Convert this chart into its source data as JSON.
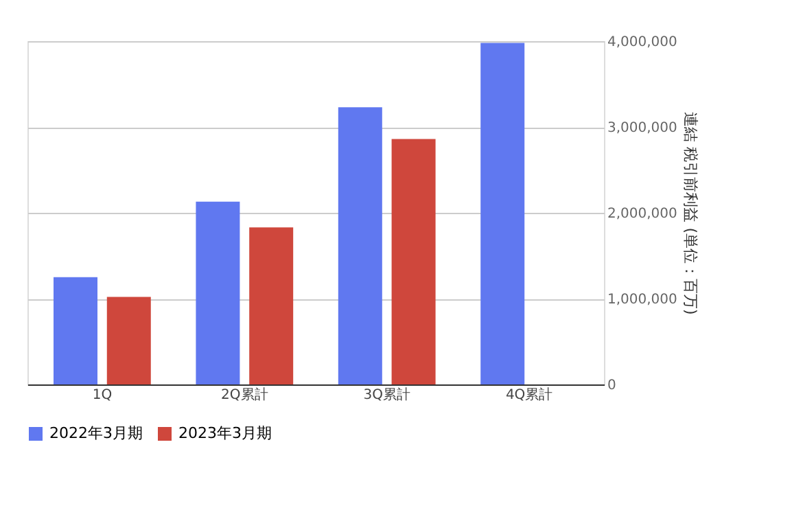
{
  "chart_data": {
    "type": "bar",
    "ylabel": "連結 税引前利益 (単位：百万)",
    "categories": [
      "1Q",
      "2Q累計",
      "3Q累計",
      "4Q累計"
    ],
    "series": [
      {
        "name": "2022年3月期",
        "color": "#6078f0",
        "values": [
          1250000,
          2130000,
          3230000,
          3980000
        ]
      },
      {
        "name": "2023年3月期",
        "color": "#cf473c",
        "values": [
          1020000,
          1830000,
          2860000,
          null
        ]
      }
    ],
    "ylim": [
      0,
      4000000
    ],
    "yticks": [
      0,
      {
        "value": 1000000,
        "label": "1,000,000"
      },
      {
        "value": 2000000,
        "label": "2,000,000"
      },
      {
        "value": 3000000,
        "label": "3,000,000"
      },
      {
        "value": 4000000,
        "label": "4,000,000"
      }
    ],
    "grid": "y",
    "legend": "bottom"
  }
}
